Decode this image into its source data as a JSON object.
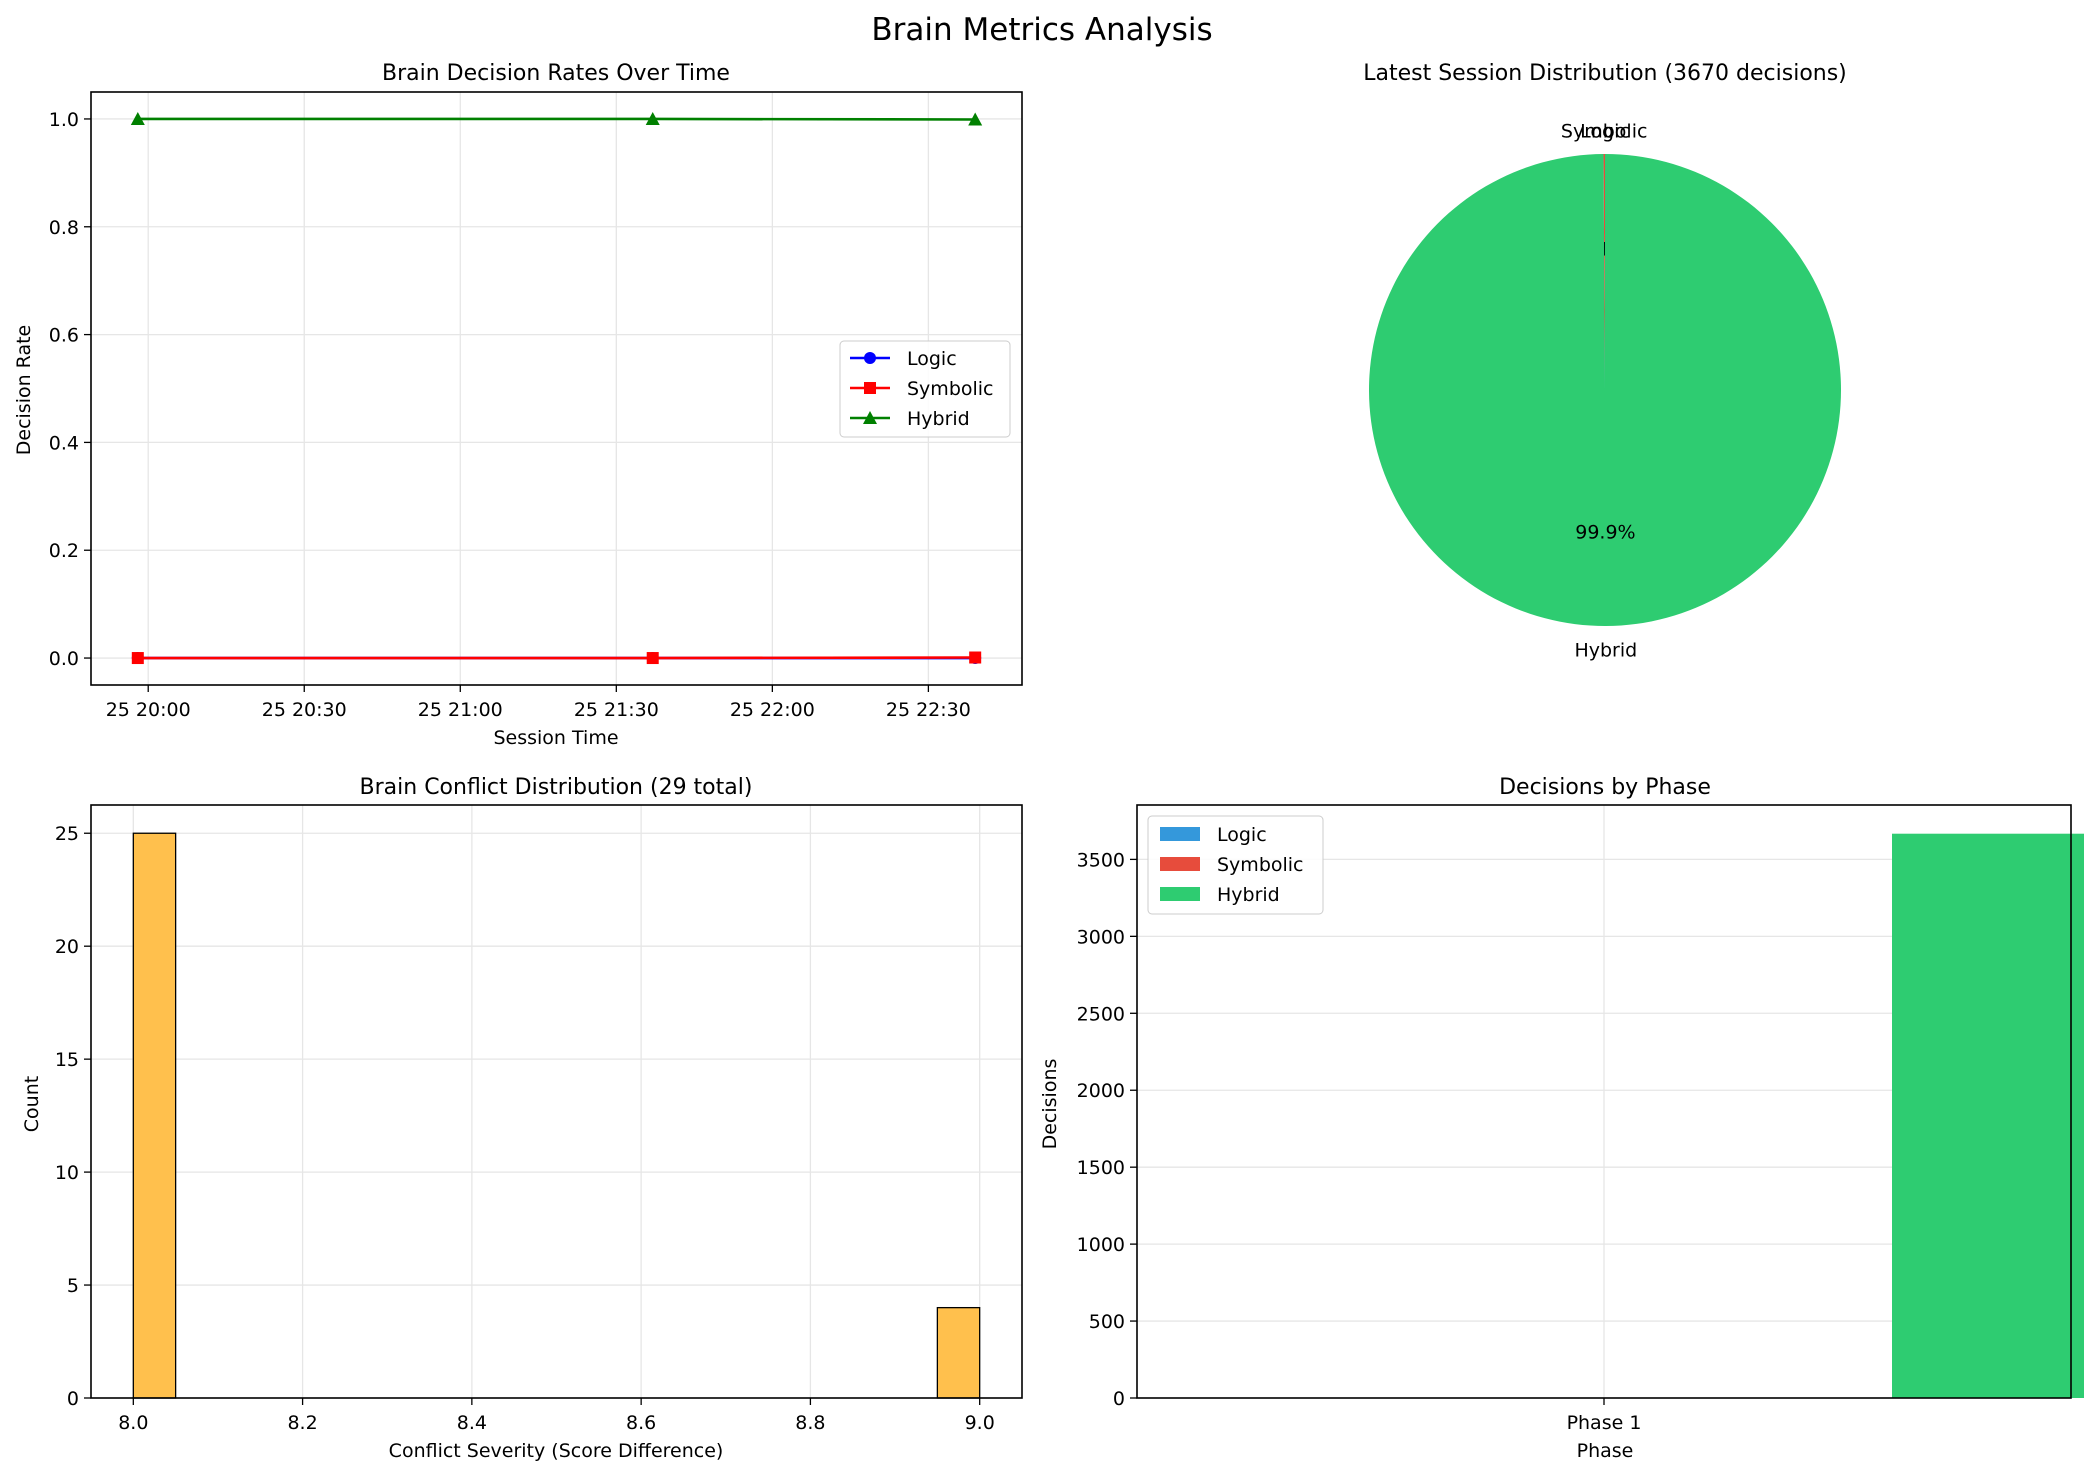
{
  "figure": {
    "title": "Brain Metrics Analysis"
  },
  "chart_data": [
    {
      "id": "rates",
      "type": "line",
      "title": "Brain Decision Rates Over Time",
      "xlabel": "Session Time",
      "ylabel": "Decision Rate",
      "x": [
        "19:58",
        "21:37",
        "22:39"
      ],
      "x_ticks": [
        "25 20:00",
        "25 20:30",
        "25 21:00",
        "25 21:30",
        "25 22:00",
        "25 22:30"
      ],
      "y_ticks": [
        "0.0",
        "0.2",
        "0.4",
        "0.6",
        "0.8",
        "1.0"
      ],
      "ylim": [
        -0.05,
        1.05
      ],
      "grid": true,
      "legend": "center right",
      "series": [
        {
          "name": "Logic",
          "values": [
            0.0,
            0.0,
            0.0
          ],
          "color": "#0000ff",
          "marker": "circle"
        },
        {
          "name": "Symbolic",
          "values": [
            0.0,
            0.0,
            0.001
          ],
          "color": "#ff0000",
          "marker": "square"
        },
        {
          "name": "Hybrid",
          "values": [
            1.0,
            1.0,
            0.999
          ],
          "color": "#008000",
          "marker": "triangle"
        }
      ]
    },
    {
      "id": "pie",
      "type": "pie",
      "title": "Latest Session Distribution (3670 decisions)",
      "slices": [
        {
          "label": "Logic",
          "value": 0.0,
          "pct": "0.0%",
          "color": "#3498db"
        },
        {
          "label": "Symbolic",
          "value": 0.1,
          "pct": "0.1%",
          "color": "#e74c3c"
        },
        {
          "label": "Hybrid",
          "value": 99.9,
          "pct": "99.9%",
          "color": "#2ecc71"
        }
      ]
    },
    {
      "id": "hist",
      "type": "bar",
      "title": "Brain Conflict Distribution (29 total)",
      "xlabel": "Conflict Severity (Score Difference)",
      "ylabel": "Count",
      "bins": [
        {
          "x0": 8.0,
          "x1": 8.05,
          "count": 25
        },
        {
          "x0": 8.95,
          "x1": 9.0,
          "count": 4
        }
      ],
      "x_ticks": [
        "8.0",
        "8.2",
        "8.4",
        "8.6",
        "8.8",
        "9.0"
      ],
      "y_ticks": [
        "0",
        "5",
        "10",
        "15",
        "20",
        "25"
      ],
      "xlim": [
        7.95,
        9.05
      ],
      "ylim": [
        0,
        26.25
      ],
      "grid": true,
      "color": "#ffc04d"
    },
    {
      "id": "phase",
      "type": "bar",
      "title": "Decisions by Phase",
      "xlabel": "Phase",
      "ylabel": "Decisions",
      "categories": [
        "Phase 1"
      ],
      "y_ticks": [
        "0",
        "500",
        "1000",
        "1500",
        "2000",
        "2500",
        "3000",
        "3500"
      ],
      "ylim": [
        0,
        3853.5
      ],
      "grid": true,
      "legend": "upper left",
      "series": [
        {
          "name": "Logic",
          "values": [
            0
          ],
          "color": "#3498db"
        },
        {
          "name": "Symbolic",
          "values": [
            3
          ],
          "color": "#e74c3c"
        },
        {
          "name": "Hybrid",
          "values": [
            3667
          ],
          "color": "#2ecc71"
        }
      ]
    }
  ]
}
